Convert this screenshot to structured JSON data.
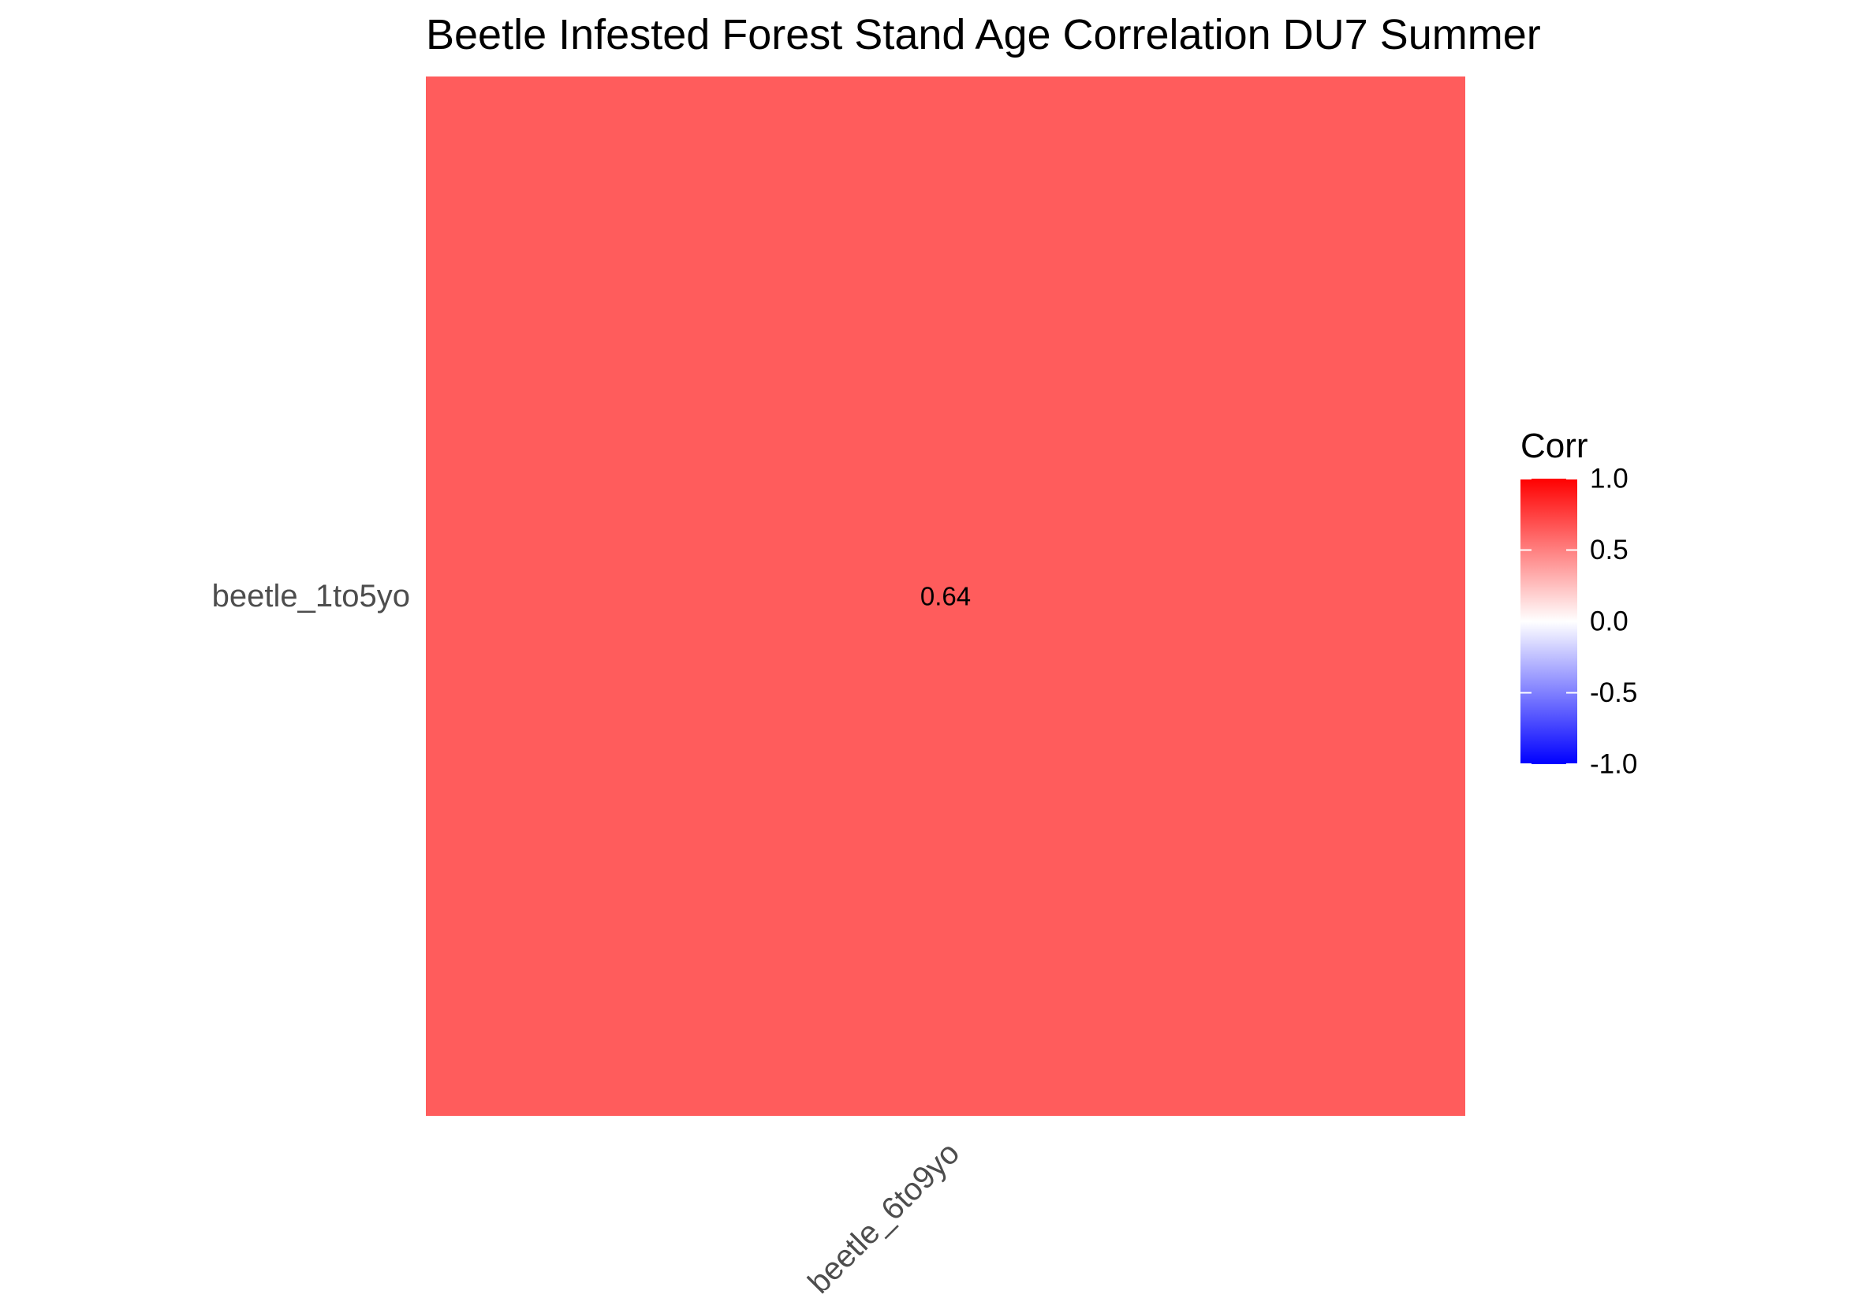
{
  "chart_data": {
    "type": "heatmap",
    "title": "Beetle Infested Forest Stand Age Correlation DU7 Summer",
    "x_categories": [
      "beetle_6to9yo"
    ],
    "y_categories": [
      "beetle_1to5yo"
    ],
    "cells": [
      {
        "x": "beetle_6to9yo",
        "y": "beetle_1to5yo",
        "value": 0.64,
        "label": "0.64"
      }
    ],
    "legend": {
      "title": "Corr",
      "range": [
        -1,
        1
      ],
      "ticks": [
        1.0,
        0.5,
        0.0,
        -0.5,
        -1.0
      ],
      "tick_labels": [
        "1.0",
        "0.5",
        "0.0",
        "-0.5",
        "-1.0"
      ],
      "colors": {
        "low": "#0000ff",
        "mid": "#ffffff",
        "high": "#ff0000"
      },
      "placement": "right"
    },
    "grid": false
  }
}
